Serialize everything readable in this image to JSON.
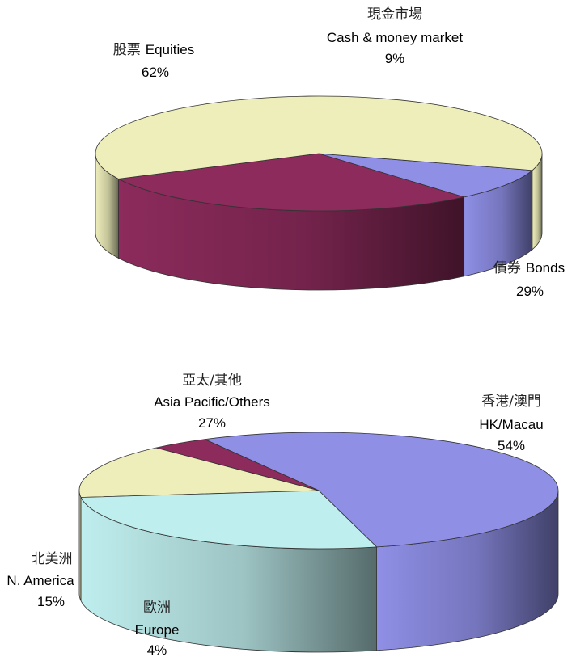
{
  "chart_data": [
    {
      "type": "pie",
      "categories": [
        "股票 Equities",
        "現金市場 Cash & money market",
        "債券 Bonds"
      ],
      "values": [
        62,
        9,
        29
      ],
      "colors": [
        "#eeeebb",
        "#8f8fe6",
        "#8c2b5c"
      ],
      "labels": [
        {
          "zh": "股票",
          "en": "Equities",
          "pct": "62%"
        },
        {
          "zh": "現金市場",
          "en": "Cash & money market",
          "pct": "9%"
        },
        {
          "zh": "債券",
          "en": "Bonds",
          "pct": "29%"
        }
      ]
    },
    {
      "type": "pie",
      "categories": [
        "香港/澳門 HK/Macau",
        "歐洲 Europe",
        "北美洲 N. America",
        "亞太/其他 Asia Pacific/Others"
      ],
      "values": [
        54,
        4,
        15,
        27
      ],
      "colors": [
        "#8f8fe6",
        "#8c2b5c",
        "#eeeebb",
        "#bfeeee"
      ],
      "labels": [
        {
          "zh": "香港/澳門",
          "en": "HK/Macau",
          "pct": "54%"
        },
        {
          "zh": "歐洲",
          "en": "Europe",
          "pct": "4%"
        },
        {
          "zh": "北美洲",
          "en": "N. America",
          "pct": "15%"
        },
        {
          "zh": "亞太/其他",
          "en": "Asia Pacific/Others",
          "pct": "27%"
        }
      ]
    }
  ]
}
